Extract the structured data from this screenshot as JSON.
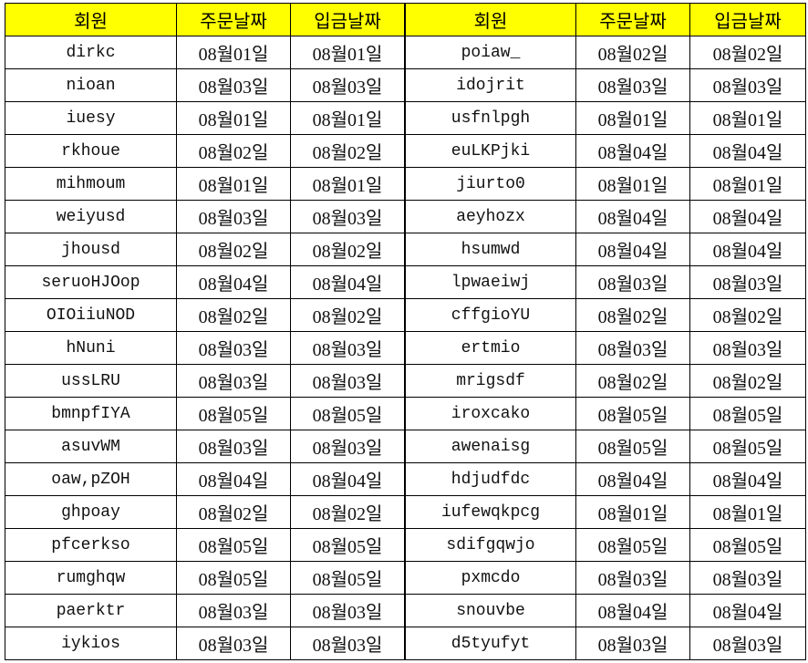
{
  "sheet": {
    "header_color": "#ffff00",
    "headers": [
      "회원",
      "주문날짜",
      "입금날짜",
      "회원",
      "주문날짜",
      "입금날짜"
    ],
    "rows": [
      [
        "dirkc",
        "08월01일",
        "08월01일",
        "poiaw_",
        "08월02일",
        "08월02일"
      ],
      [
        "nioan",
        "08월03일",
        "08월03일",
        "idojrit",
        "08월03일",
        "08월03일"
      ],
      [
        "iuesy",
        "08월01일",
        "08월01일",
        "usfnlpgh",
        "08월01일",
        "08월01일"
      ],
      [
        "rkhoue",
        "08월02일",
        "08월02일",
        "euLKPjki",
        "08월04일",
        "08월04일"
      ],
      [
        "mihmoum",
        "08월01일",
        "08월01일",
        "jiurto0",
        "08월01일",
        "08월01일"
      ],
      [
        "weiyusd",
        "08월03일",
        "08월03일",
        "aeyhozx",
        "08월04일",
        "08월04일"
      ],
      [
        "jhousd",
        "08월02일",
        "08월02일",
        "hsumwd",
        "08월04일",
        "08월04일"
      ],
      [
        "seruoHJOop",
        "08월04일",
        "08월04일",
        "lpwaeiwj",
        "08월03일",
        "08월03일"
      ],
      [
        "OIOiiuNOD",
        "08월02일",
        "08월02일",
        "cffgioYU",
        "08월02일",
        "08월02일"
      ],
      [
        "hNuni",
        "08월03일",
        "08월03일",
        "ertmio",
        "08월03일",
        "08월03일"
      ],
      [
        "ussLRU",
        "08월03일",
        "08월03일",
        "mrigsdf",
        "08월02일",
        "08월02일"
      ],
      [
        "bmnpfIYA",
        "08월05일",
        "08월05일",
        "iroxcako",
        "08월05일",
        "08월05일"
      ],
      [
        "asuvWM",
        "08월03일",
        "08월03일",
        "awenaisg",
        "08월05일",
        "08월05일"
      ],
      [
        "oaw,pZOH",
        "08월04일",
        "08월04일",
        "hdjudfdc",
        "08월04일",
        "08월04일"
      ],
      [
        "ghpoay",
        "08월02일",
        "08월02일",
        "iufewqkpcg",
        "08월01일",
        "08월01일"
      ],
      [
        "pfcerkso",
        "08월05일",
        "08월05일",
        "sdifgqwjo",
        "08월05일",
        "08월05일"
      ],
      [
        "rumghqw",
        "08월05일",
        "08월05일",
        "pxmcdo",
        "08월03일",
        "08월03일"
      ],
      [
        "paerktr",
        "08월03일",
        "08월03일",
        "snouvbe",
        "08월04일",
        "08월04일"
      ],
      [
        "iykios",
        "08월03일",
        "08월03일",
        "d5tyufyt",
        "08월03일",
        "08월03일"
      ]
    ]
  }
}
